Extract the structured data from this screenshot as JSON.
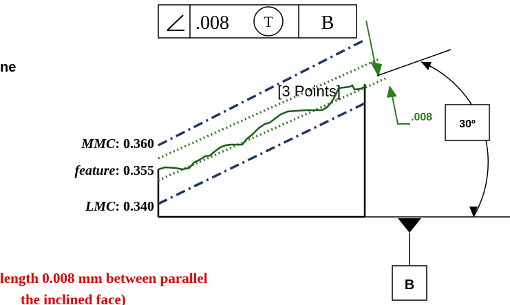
{
  "fcf": {
    "symbol_icon": "angularity-icon",
    "tolerance": ".008",
    "modifier": "T",
    "datum": "B"
  },
  "left_label_fragment": "ne",
  "points_label": "[3 Points]",
  "labels": {
    "mmc_name": "MMC",
    "mmc_value": "0.360",
    "feature_name": "feature",
    "feature_value": "0.355",
    "lmc_name": "LMC",
    "lmc_value": "0.340"
  },
  "tolerance_callout": ".008",
  "angle_label": "30º",
  "datum_label": "B",
  "caption": {
    "line1": "length 0.008 mm between parallel",
    "line2": "the inclined face)"
  },
  "colors": {
    "fcf": "#000000",
    "boundary_upper": "#1f3864",
    "boundary_lower": "#1f3864",
    "tolerance_zone": "#2e7d1e",
    "profile": "#1a5e1a",
    "callout": "#2e7d1e",
    "caption": "#e00000"
  }
}
